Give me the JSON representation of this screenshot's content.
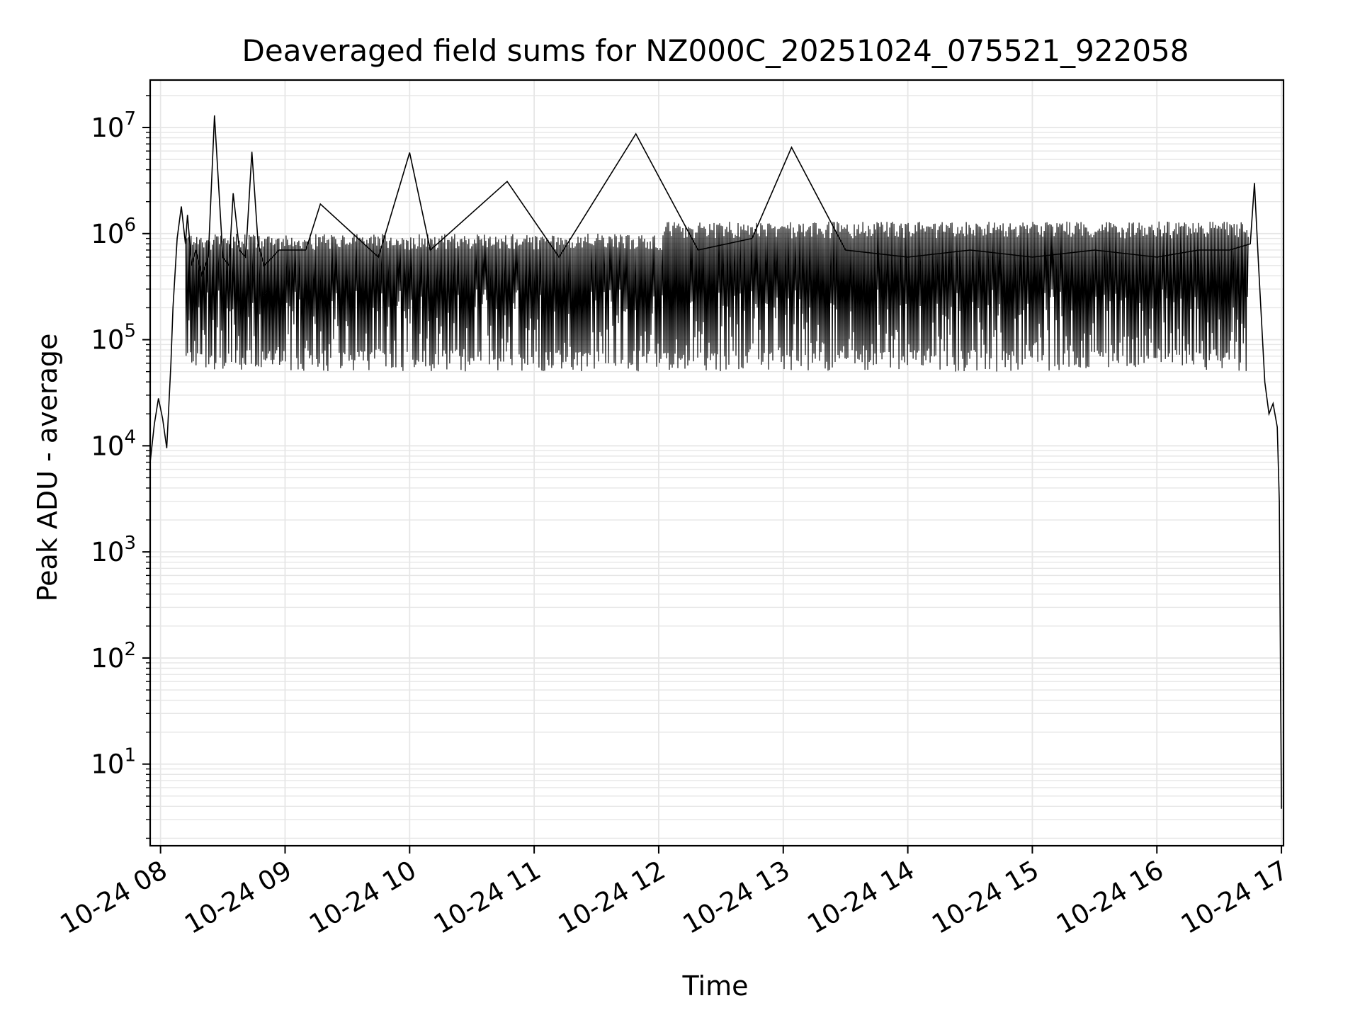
{
  "chart_data": {
    "type": "line",
    "title": "Deaveraged field sums for NZ000C_20251024_075521_922058",
    "xlabel": "Time",
    "ylabel": "Peak ADU - average",
    "yscale": "log",
    "grid": true,
    "legend": "none",
    "xlim": [
      "2025-10-24 07:55",
      "2025-10-24 17:01"
    ],
    "ylim": [
      1.7,
      28000000
    ],
    "x_ticks": [
      {
        "value": "2025-10-24 08:00",
        "label": "10-24 08"
      },
      {
        "value": "2025-10-24 09:00",
        "label": "10-24 09"
      },
      {
        "value": "2025-10-24 10:00",
        "label": "10-24 10"
      },
      {
        "value": "2025-10-24 11:00",
        "label": "10-24 11"
      },
      {
        "value": "2025-10-24 12:00",
        "label": "10-24 12"
      },
      {
        "value": "2025-10-24 13:00",
        "label": "10-24 13"
      },
      {
        "value": "2025-10-24 14:00",
        "label": "10-24 14"
      },
      {
        "value": "2025-10-24 15:00",
        "label": "10-24 15"
      },
      {
        "value": "2025-10-24 16:00",
        "label": "10-24 16"
      },
      {
        "value": "2025-10-24 17:00",
        "label": "10-24 17"
      }
    ],
    "y_ticks": [
      {
        "value": 10,
        "base": "10",
        "exp": "1"
      },
      {
        "value": 100,
        "base": "10",
        "exp": "2"
      },
      {
        "value": 1000,
        "base": "10",
        "exp": "3"
      },
      {
        "value": 10000,
        "base": "10",
        "exp": "4"
      },
      {
        "value": 100000,
        "base": "10",
        "exp": "5"
      },
      {
        "value": 1000000,
        "base": "10",
        "exp": "6"
      },
      {
        "value": 10000000,
        "base": "10",
        "exp": "7"
      }
    ],
    "colors": {
      "line": "#000000",
      "grid": "#e6e6e6",
      "axes": "#000000"
    },
    "series": [
      {
        "x": [
          "2025-10-24 07:55",
          "2025-10-24 07:57",
          "2025-10-24 07:59",
          "2025-10-24 08:01",
          "2025-10-24 08:03",
          "2025-10-24 08:05",
          "2025-10-24 08:06",
          "2025-10-24 08:08",
          "2025-10-24 08:10",
          "2025-10-24 08:12",
          "2025-10-24 08:13",
          "2025-10-24 08:15",
          "2025-10-24 08:17",
          "2025-10-24 08:20",
          "2025-10-24 08:23",
          "2025-10-24 08:26",
          "2025-10-24 08:30",
          "2025-10-24 08:33",
          "2025-10-24 08:35",
          "2025-10-24 08:38",
          "2025-10-24 08:41",
          "2025-10-24 08:44",
          "2025-10-24 08:47",
          "2025-10-24 08:50",
          "2025-10-24 08:54",
          "2025-10-24 08:57",
          "2025-10-24 09:10",
          "2025-10-24 09:17",
          "2025-10-24 09:45",
          "2025-10-24 10:00",
          "2025-10-24 10:10",
          "2025-10-24 10:47",
          "2025-10-24 11:12",
          "2025-10-24 11:49",
          "2025-10-24 12:19",
          "2025-10-24 12:45",
          "2025-10-24 13:04",
          "2025-10-24 13:30",
          "2025-10-24 14:00",
          "2025-10-24 14:30",
          "2025-10-24 15:00",
          "2025-10-24 15:30",
          "2025-10-24 16:00",
          "2025-10-24 16:20",
          "2025-10-24 16:35",
          "2025-10-24 16:45",
          "2025-10-24 16:47",
          "2025-10-24 16:49",
          "2025-10-24 16:52",
          "2025-10-24 16:54",
          "2025-10-24 16:56",
          "2025-10-24 16:58",
          "2025-10-24 16:59",
          "2025-10-24 17:00"
        ],
        "y": [
          7000,
          16000,
          28000,
          18000,
          9500,
          60000,
          200000,
          900000,
          1800000,
          800000,
          1500000,
          500000,
          700000,
          400000,
          600000,
          13000000,
          600000,
          500000,
          2400000,
          700000,
          600000,
          5900000,
          800000,
          500000,
          600000,
          700000,
          700000,
          1900000,
          600000,
          5800000,
          700000,
          3100000,
          600000,
          8700000,
          700000,
          900000,
          6500000,
          700000,
          600000,
          700000,
          600000,
          700000,
          600000,
          700000,
          700000,
          800000,
          3000000,
          500000,
          40000,
          20000,
          25000,
          15000,
          3000,
          3.8
        ]
      }
    ]
  }
}
